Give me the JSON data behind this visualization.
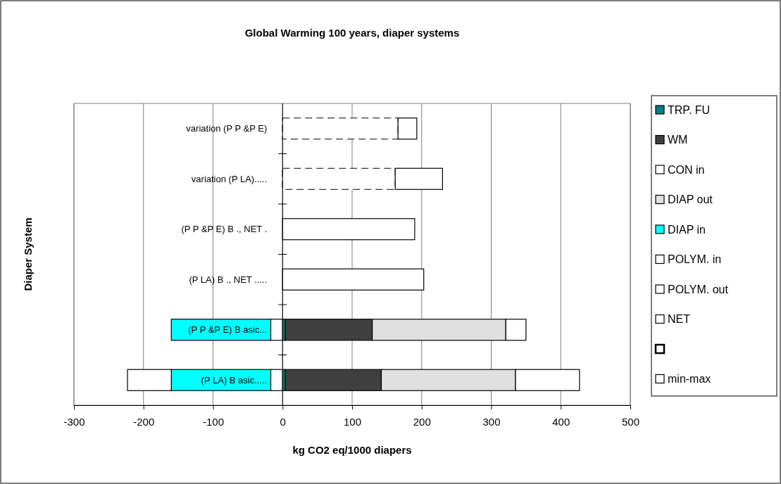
{
  "chart_data": {
    "type": "bar",
    "orientation": "horizontal",
    "stacked": true,
    "title": "Global Warming 100 years, diaper systems",
    "xlabel": "kg CO2 eq/1000 diapers",
    "ylabel": "Diaper System",
    "categories": [
      "variation (P P &P E)",
      "variation (P LA).....",
      "(P P &P E) B ., NET .",
      "(P LA) B ., NET .....",
      "(P P &P E) B asic...",
      "(P LA) B asic....."
    ],
    "series": [
      {
        "name": "TRP. FU",
        "color": "#008080",
        "values": [
          null,
          null,
          null,
          null,
          4,
          4
        ]
      },
      {
        "name": "WM",
        "color": "#404040",
        "values": [
          null,
          null,
          null,
          null,
          125,
          138
        ]
      },
      {
        "name": "CON in",
        "color": "#ffffff",
        "values": [
          null,
          null,
          null,
          null,
          -17,
          -17
        ]
      },
      {
        "name": "DIAP out",
        "color": "#e0e0e0",
        "values": [
          null,
          null,
          null,
          null,
          192,
          193
        ]
      },
      {
        "name": "DIAP in",
        "color": "#00ffff",
        "values": [
          null,
          null,
          null,
          null,
          -143,
          -143
        ]
      },
      {
        "name": "POLYM. in",
        "color": "#ffffff",
        "values": [
          null,
          null,
          null,
          null,
          null,
          -63
        ]
      },
      {
        "name": "POLYM. out",
        "color": "#ffffff",
        "values": [
          null,
          null,
          null,
          null,
          null,
          null
        ]
      },
      {
        "name": "NET",
        "color": "#ffffff",
        "values": [
          null,
          null,
          190,
          203,
          null,
          null
        ]
      },
      {
        "color": "#ffffff",
        "line_style": "dashed",
        "values": [
          166,
          162,
          null,
          null,
          null,
          null
        ]
      },
      {
        "name": "min-max",
        "color": "#ffffff",
        "values": [
          27,
          68,
          null,
          null,
          29,
          92
        ]
      }
    ],
    "xlim": [
      -300,
      500
    ],
    "xticks": [
      -300,
      -200,
      -100,
      0,
      100,
      200,
      300,
      400,
      500
    ],
    "grid": "x",
    "legend": "right"
  }
}
